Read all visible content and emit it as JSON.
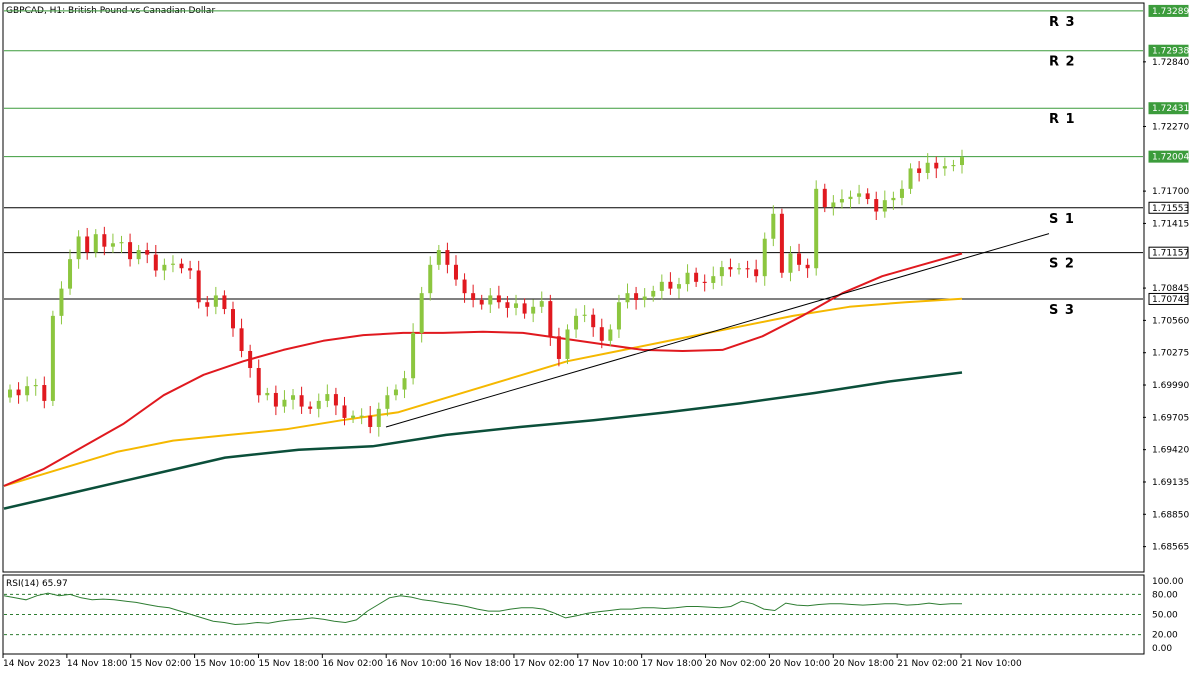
{
  "chart_title": "GBPCAD, H1:  British Pound vs Canadian Dollar",
  "rsi_label": "RSI(14) 65.97",
  "colors": {
    "bull": "#8cc63f",
    "bear": "#e0191f",
    "ma_red": "#e0191f",
    "ma_yellow": "#f5b800",
    "ma_green": "#0b4f3a",
    "rsi_line": "#2e7d32",
    "resistance": "#3c9c3c",
    "support": "#000000"
  },
  "chart_data": {
    "type": "line",
    "title": "GBPCAD, H1:  British Pound vs Canadian Dollar",
    "ylim": [
      1.6835,
      1.7335
    ],
    "price_ticks": [
      "1.72840",
      "1.72270",
      "1.71700",
      "1.71415",
      "1.70845",
      "1.70560",
      "1.70275",
      "1.69990",
      "1.69705",
      "1.69420",
      "1.69135",
      "1.68850",
      "1.68565"
    ],
    "time_labels": [
      "14 Nov 2023",
      "14 Nov 18:00",
      "15 Nov 02:00",
      "15 Nov 10:00",
      "15 Nov 18:00",
      "16 Nov 02:00",
      "16 Nov 10:00",
      "16 Nov 18:00",
      "17 Nov 02:00",
      "17 Nov 10:00",
      "17 Nov 18:00",
      "20 Nov 02:00",
      "20 Nov 10:00",
      "20 Nov 18:00",
      "21 Nov 02:00",
      "21 Nov 10:00"
    ],
    "levels": [
      {
        "name": "R 3",
        "price": 1.73289,
        "label": "1.73289",
        "kind": "resistance"
      },
      {
        "name": "R 2",
        "price": 1.72938,
        "label": "1.72938",
        "kind": "resistance"
      },
      {
        "name": "R 1",
        "price": 1.72431,
        "label": "1.72431",
        "kind": "resistance"
      },
      {
        "name": "",
        "price": 1.72004,
        "label": "1.72004",
        "kind": "current"
      },
      {
        "name": "S 1",
        "price": 1.71553,
        "label": "1.71553",
        "kind": "support"
      },
      {
        "name": "S 2",
        "price": 1.71157,
        "label": "1.71157",
        "kind": "support"
      },
      {
        "name": "S 3",
        "price": 1.70749,
        "label": "1.70749",
        "kind": "support"
      }
    ],
    "candles_close": [
      1.6995,
      1.699,
      1.6998,
      1.6999,
      1.6985,
      1.706,
      1.7084,
      1.711,
      1.713,
      1.7116,
      1.7132,
      1.7121,
      1.7124,
      1.7125,
      1.711,
      1.7118,
      1.7114,
      1.71,
      1.7105,
      1.7106,
      1.7102,
      1.71,
      1.7072,
      1.7068,
      1.7078,
      1.7066,
      1.7049,
      1.7029,
      1.7014,
      1.699,
      1.6992,
      1.698,
      1.6986,
      1.699,
      1.698,
      1.6978,
      1.6985,
      1.6991,
      1.6981,
      1.697,
      1.6972,
      1.6972,
      1.6962,
      1.6978,
      1.699,
      1.6995,
      1.7005,
      1.7045,
      1.708,
      1.7105,
      1.7118,
      1.7105,
      1.7092,
      1.708,
      1.7074,
      1.707,
      1.7078,
      1.7072,
      1.7067,
      1.7071,
      1.7062,
      1.7068,
      1.7073,
      1.7042,
      1.7022,
      1.7048,
      1.706,
      1.7061,
      1.705,
      1.7038,
      1.7048,
      1.7072,
      1.708,
      1.7074,
      1.7077,
      1.7082,
      1.709,
      1.7084,
      1.7088,
      1.7098,
      1.709,
      1.7089,
      1.7095,
      1.7103,
      1.7101,
      1.7102,
      1.7101,
      1.7095,
      1.7128,
      1.715,
      1.7098,
      1.7115,
      1.7105,
      1.7102,
      1.7172,
      1.7156,
      1.716,
      1.7163,
      1.7165,
      1.7168,
      1.7163,
      1.7152,
      1.7162,
      1.7164,
      1.7172,
      1.719,
      1.7186,
      1.7195,
      1.719,
      1.7192,
      1.7193,
      1.72
    ],
    "ma_red_series": [
      1.691,
      1.6925,
      1.6945,
      1.6965,
      1.699,
      1.7008,
      1.702,
      1.703,
      1.7038,
      1.7043,
      1.7045,
      1.7045,
      1.7046,
      1.7045,
      1.704,
      1.7035,
      1.703,
      1.7029,
      1.703,
      1.7042,
      1.706,
      1.708,
      1.7095,
      1.7105,
      1.7115
    ],
    "ma_yellow_series": [
      1.691,
      1.6925,
      1.694,
      1.695,
      1.6955,
      1.696,
      1.6968,
      1.6975,
      1.699,
      1.7005,
      1.702,
      1.703,
      1.704,
      1.705,
      1.706,
      1.7068,
      1.7072,
      1.7075
    ],
    "ma_green_series": [
      1.689,
      1.6905,
      1.692,
      1.6935,
      1.6942,
      1.6945,
      1.6955,
      1.6962,
      1.6968,
      1.6975,
      1.6983,
      1.6992,
      1.7002,
      1.701
    ],
    "rsi": {
      "levels": [
        80,
        50,
        20
      ],
      "ticks": [
        "100.00",
        "80.00",
        "50.00",
        "20.00",
        "0.00"
      ],
      "values": [
        78,
        75,
        72,
        78,
        82,
        78,
        80,
        75,
        72,
        73,
        72,
        70,
        68,
        65,
        62,
        60,
        55,
        50,
        45,
        40,
        38,
        35,
        36,
        38,
        37,
        40,
        42,
        43,
        45,
        43,
        40,
        38,
        42,
        55,
        65,
        75,
        78,
        76,
        72,
        70,
        67,
        65,
        62,
        58,
        55,
        55,
        58,
        60,
        60,
        58,
        52,
        45,
        48,
        52,
        54,
        56,
        58,
        58,
        60,
        60,
        59,
        60,
        62,
        62,
        61,
        60,
        62,
        70,
        66,
        58,
        56,
        67,
        64,
        63,
        65,
        66,
        66,
        65,
        64,
        65,
        66,
        66,
        64,
        65,
        67,
        65,
        66,
        66
      ]
    }
  }
}
